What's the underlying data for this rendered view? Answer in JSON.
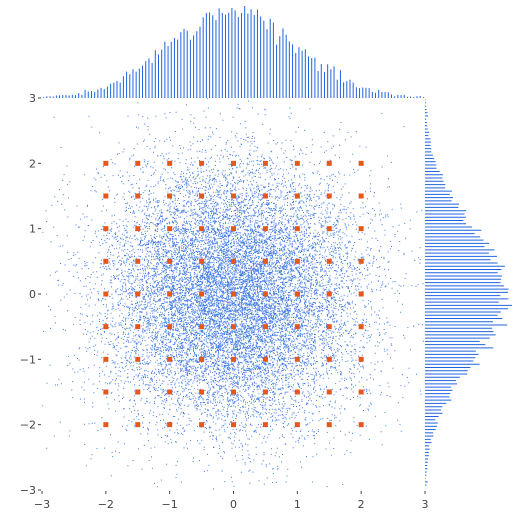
{
  "chart_data": {
    "type": "scatter",
    "title": "",
    "xlabel": "",
    "ylabel": "",
    "xlim": [
      -3,
      3
    ],
    "ylim": [
      -3,
      3
    ],
    "grid": false,
    "x_tick_labels": [
      "−3",
      "−2",
      "−1",
      "0",
      "1",
      "2",
      "3"
    ],
    "y_tick_labels": [
      "−3",
      "−2",
      "−1",
      "0",
      "1",
      "2",
      "3"
    ],
    "x_tick_values": [
      -3,
      -2,
      -1,
      0,
      1,
      2,
      3
    ],
    "y_tick_values": [
      -3,
      -2,
      -1,
      0,
      1,
      2,
      3
    ],
    "series": [
      {
        "kind": "scatter",
        "color": "#1f63e0",
        "distribution": "bivariate standard normal, mean [0, 0], sd [1, 1]",
        "n_points": 15000
      },
      {
        "kind": "scatter",
        "color": "#e4571d",
        "x_values": [
          -2,
          -1.5,
          -1,
          -0.5,
          0,
          0.5,
          1,
          1.5,
          2
        ],
        "y_values": [
          -2,
          -1.5,
          -1,
          -0.5,
          0,
          0.5,
          1,
          1.5,
          2
        ]
      }
    ],
    "marginal_histograms": {
      "top": {
        "variable": "x",
        "color": "#1f63e0",
        "bins": 120
      },
      "right": {
        "variable": "y",
        "color": "#1f63e0",
        "bins": 120
      }
    }
  }
}
